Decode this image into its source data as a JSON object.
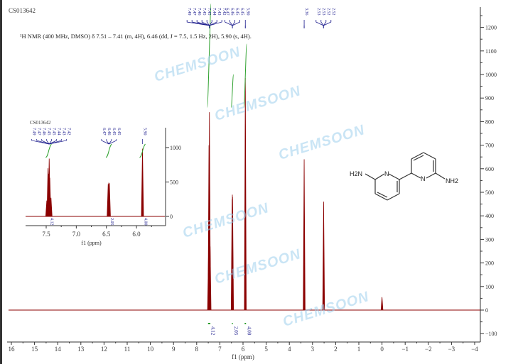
{
  "sample_id": "CS013642",
  "description": "¹H NMR (400 MHz, DMSO) δ 7.51 – 7.41 (m, 4H), 6.46 (dd, J = 7.5, 1.5 Hz, 2H), 5.90 (s, 4H).",
  "watermark": "CHEMSOON",
  "molecule": {
    "left_group": "H2N",
    "right_group": "NH2",
    "ring_atom": "N"
  },
  "colors": {
    "spectrum": "#8b0000",
    "peak_label": "#1a1a8c",
    "integral": "#2ca02c",
    "watermark": "#9fd0ee"
  },
  "chart_data": {
    "type": "line",
    "xlabel": "f1 (ppm)",
    "xlim": [
      16,
      -4
    ],
    "x_reversed": true,
    "ylim": [
      -100,
      1300
    ],
    "xticks": [
      16,
      15,
      14,
      13,
      12,
      11,
      10,
      9,
      8,
      7,
      6,
      5,
      4,
      3,
      2,
      1,
      0,
      -1,
      -2,
      -3,
      -4
    ],
    "yticks": [
      -100,
      0,
      100,
      200,
      300,
      400,
      500,
      600,
      700,
      800,
      900,
      1000,
      1100,
      1200
    ],
    "peaks": [
      {
        "ppm": 7.49,
        "intensity": 230
      },
      {
        "ppm": 7.47,
        "intensity": 700
      },
      {
        "ppm": 7.46,
        "intensity": 620
      },
      {
        "ppm": 7.45,
        "intensity": 840
      },
      {
        "ppm": 7.44,
        "intensity": 560
      },
      {
        "ppm": 7.42,
        "intensity": 270
      },
      {
        "ppm": 6.47,
        "intensity": 470
      },
      {
        "ppm": 6.46,
        "intensity": 490
      },
      {
        "ppm": 6.45,
        "intensity": 480
      },
      {
        "ppm": 5.9,
        "intensity": 985
      },
      {
        "ppm": 3.36,
        "intensity": 640
      },
      {
        "ppm": 2.52,
        "intensity": 460
      },
      {
        "ppm": 0.0,
        "intensity": 55
      }
    ],
    "peak_labels": [
      {
        "group": [
          7.49,
          7.47,
          7.46,
          7.45,
          7.45,
          7.44,
          7.43,
          7.42
        ],
        "labels": [
          "7.49",
          "7.47",
          "7.46",
          "7.45",
          "7.45",
          "7.44",
          "7.43",
          "7.42"
        ]
      },
      {
        "group": [
          6.47,
          6.46,
          6.45,
          6.45
        ],
        "labels": [
          "6.47",
          "6.46",
          "6.45",
          "6.45"
        ]
      },
      {
        "group": [
          5.9
        ],
        "labels": [
          "5.90"
        ]
      },
      {
        "group": [
          3.36
        ],
        "labels": [
          "3.36"
        ]
      },
      {
        "group": [
          2.53,
          2.53,
          2.52,
          2.52
        ],
        "labels": [
          "2.53",
          "2.53",
          "2.52",
          "2.52"
        ]
      }
    ],
    "integrals": [
      {
        "from": 7.51,
        "to": 7.41,
        "value": "4.12"
      },
      {
        "from": 6.48,
        "to": 6.44,
        "value": "2.05"
      },
      {
        "from": 5.93,
        "to": 5.87,
        "value": "4.00"
      }
    ],
    "inset": {
      "label": "CS013642",
      "xlabel": "f1 (ppm)",
      "xlim": [
        7.75,
        5.75
      ],
      "ylim": [
        0,
        1250
      ],
      "xticks": [
        7.5,
        7.0,
        6.5,
        6.0
      ],
      "xtick_labels": [
        "7.5",
        "7.0",
        "6.5",
        "6.0"
      ],
      "yticks": [
        0,
        500,
        1000
      ]
    }
  }
}
